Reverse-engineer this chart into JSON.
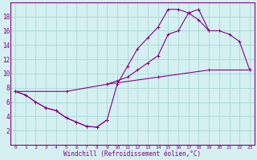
{
  "xlabel": "Windchill (Refroidissement éolien,°C)",
  "background_color": "#d4f0f0",
  "grid_color": "#aad8d8",
  "line_color": "#880088",
  "xlim": [
    -0.5,
    23.5
  ],
  "ylim": [
    0,
    20
  ],
  "xticks": [
    0,
    1,
    2,
    3,
    4,
    5,
    6,
    7,
    8,
    9,
    10,
    11,
    12,
    13,
    14,
    15,
    16,
    17,
    18,
    19,
    20,
    21,
    22,
    23
  ],
  "yticks": [
    2,
    4,
    6,
    8,
    10,
    12,
    14,
    16,
    18
  ],
  "series": [
    {
      "x": [
        0,
        1,
        2,
        3,
        4,
        5,
        6,
        7,
        8,
        9
      ],
      "y": [
        7.5,
        7.0,
        6.0,
        5.2,
        4.8,
        3.8,
        3.2,
        2.6,
        2.5,
        3.5
      ]
    },
    {
      "x": [
        0,
        1,
        2,
        3,
        4,
        5,
        6,
        7,
        8,
        9,
        10,
        11,
        12,
        13,
        14,
        15,
        16,
        17,
        18,
        19
      ],
      "y": [
        7.5,
        7.0,
        6.0,
        5.2,
        4.8,
        3.8,
        3.2,
        2.6,
        2.5,
        3.5,
        8.5,
        11.0,
        13.5,
        15.0,
        16.5,
        19.0,
        19.0,
        18.5,
        17.5,
        16.0
      ]
    },
    {
      "x": [
        9,
        10,
        11,
        12,
        13,
        14,
        15,
        16,
        17,
        18,
        19,
        20,
        21,
        22,
        23
      ],
      "y": [
        8.5,
        9.0,
        9.5,
        10.5,
        11.5,
        12.5,
        15.5,
        16.0,
        18.5,
        19.0,
        16.0,
        16.0,
        15.5,
        14.5,
        10.5
      ]
    },
    {
      "x": [
        0,
        5,
        9,
        14,
        19,
        23
      ],
      "y": [
        7.5,
        7.5,
        8.5,
        9.5,
        10.5,
        10.5
      ]
    }
  ]
}
